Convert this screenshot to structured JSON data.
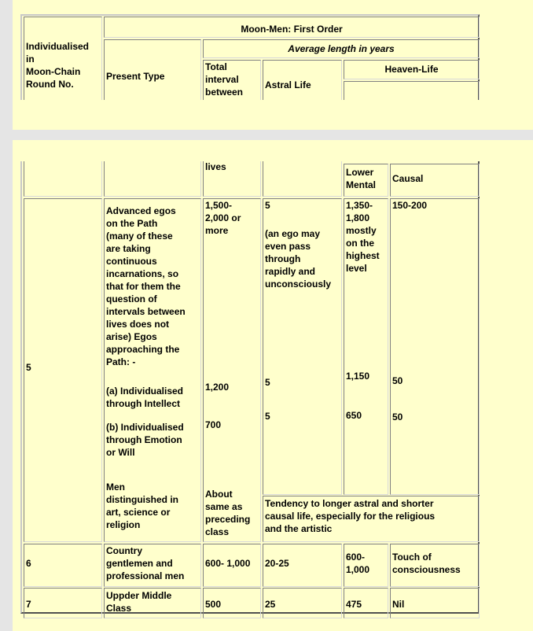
{
  "colors": {
    "page_bg": "#ffffcc",
    "gap_bg": "#e5e5e5"
  },
  "header": {
    "round_col": "Individualised\nin\nMoon-Chain\nRound No.",
    "group_title": "Moon-Men: First Order",
    "present_type": "Present Type",
    "avg_length": "Average length in years",
    "total_interval_part1": "Total\ninterval\nbetween",
    "total_interval_part2": "lives",
    "astral": "Astral Life",
    "heaven": "Heaven-Life",
    "lower_mental": "Lower\nMental",
    "causal": "Causal"
  },
  "rows": [
    {
      "round": "5",
      "types": [
        "Advanced egos\non the Path\n(many of these\nare taking\ncontinuous\nincarnations, so\nthat for them the\nquestion of\nintervals between\nlives does not\narise) Egos\napproaching the\nPath: -",
        "(a) Individualised\nthrough Intellect",
        "(b) Individualised\nthrough Emotion\nor Will",
        "Men\ndistinguished in\nart, science or\nreligion"
      ],
      "total": [
        "1,500-\n2,000 or\nmore",
        "1,200",
        "700",
        "About\nsame as\npreceding\nclass"
      ],
      "astral": [
        "5",
        "(an ego may\neven pass\nthrough\nrapidly and\nunconsciously",
        "5",
        "5"
      ],
      "lower_mental": [
        "1,350-\n1,800\nmostly\non the\nhighest\nlevel",
        "1,150",
        "650"
      ],
      "causal": [
        "150-200",
        "50",
        "50"
      ],
      "note": "Tendency to longer astral and shorter\ncausal life, especially for the religious\nand the artistic"
    },
    {
      "round": "6",
      "type": "Country\ngentlemen and\nprofessional men",
      "total": "600- 1,000",
      "astral": "20-25",
      "lower_mental": "600-\n1,000",
      "causal": "Touch of\nconsciousness"
    },
    {
      "round": "7",
      "type": "Uppder Middle\nClass",
      "total": "500",
      "astral": "25",
      "lower_mental": "475",
      "causal": "Nil"
    }
  ]
}
